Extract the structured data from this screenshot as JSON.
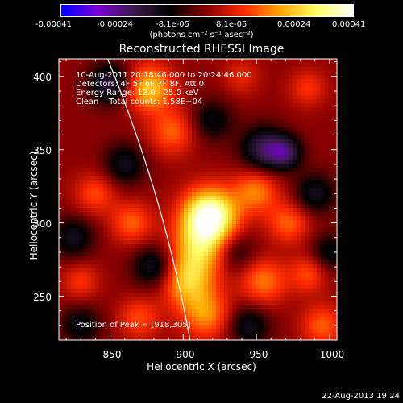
{
  "colorbar": {
    "ticks": [
      "-0.00041",
      "-0.00024",
      "-8.1e-05",
      "8.1e-05",
      "0.00024",
      "0.00041"
    ],
    "unit": "(photons cm⁻² s⁻¹ asec⁻²)",
    "colors": [
      "#0000ff",
      "#7a00d8",
      "#3a1a4a",
      "#000000",
      "#8a0000",
      "#ff2a00",
      "#ffa500",
      "#ffff66",
      "#ffffff"
    ]
  },
  "chart_data": {
    "type": "heatmap",
    "title": "Reconstructed RHESSI Image",
    "xlabel": "Heliocentric X (arcsec)",
    "ylabel": "Heliocentric Y (arcsec)",
    "xlim": [
      815,
      1005
    ],
    "ylim": [
      220,
      412
    ],
    "xticks": [
      "850",
      "900",
      "950",
      "1000"
    ],
    "yticks": [
      "250",
      "300",
      "350",
      "400"
    ],
    "xtick_values": [
      850,
      900,
      950,
      1000
    ],
    "ytick_values": [
      250,
      300,
      350,
      400
    ],
    "peak": [
      918,
      305
    ],
    "sources": [
      {
        "x": 918,
        "y": 305,
        "amp": 1.0,
        "w": 13
      },
      {
        "x": 912,
        "y": 282,
        "amp": 0.55,
        "w": 14
      },
      {
        "x": 902,
        "y": 260,
        "amp": 0.5,
        "w": 12
      },
      {
        "x": 915,
        "y": 238,
        "amp": 0.45,
        "w": 12
      },
      {
        "x": 877,
        "y": 392,
        "amp": 0.6,
        "w": 11
      },
      {
        "x": 892,
        "y": 362,
        "amp": 0.35,
        "w": 11
      },
      {
        "x": 950,
        "y": 322,
        "amp": 0.42,
        "w": 11
      },
      {
        "x": 972,
        "y": 300,
        "amp": 0.35,
        "w": 10
      },
      {
        "x": 955,
        "y": 260,
        "amp": 0.4,
        "w": 11
      },
      {
        "x": 985,
        "y": 265,
        "amp": 0.3,
        "w": 9
      },
      {
        "x": 865,
        "y": 300,
        "amp": 0.35,
        "w": 10
      },
      {
        "x": 840,
        "y": 320,
        "amp": 0.3,
        "w": 10
      },
      {
        "x": 995,
        "y": 230,
        "amp": 0.35,
        "w": 10
      },
      {
        "x": 830,
        "y": 260,
        "amp": 0.25,
        "w": 9
      },
      {
        "x": 985,
        "y": 392,
        "amp": 0.25,
        "w": 9
      },
      {
        "x": 870,
        "y": 235,
        "amp": 0.3,
        "w": 10
      },
      {
        "x": 940,
        "y": 400,
        "amp": 0.2,
        "w": 9
      },
      {
        "x": 850,
        "y": 395,
        "amp": -0.45,
        "w": 10
      },
      {
        "x": 955,
        "y": 350,
        "amp": -0.5,
        "w": 11
      },
      {
        "x": 970,
        "y": 348,
        "amp": -0.45,
        "w": 8
      },
      {
        "x": 860,
        "y": 340,
        "amp": -0.35,
        "w": 10
      },
      {
        "x": 935,
        "y": 280,
        "amp": -0.3,
        "w": 10
      },
      {
        "x": 880,
        "y": 270,
        "amp": -0.4,
        "w": 10
      },
      {
        "x": 825,
        "y": 290,
        "amp": -0.35,
        "w": 10
      },
      {
        "x": 990,
        "y": 320,
        "amp": -0.35,
        "w": 10
      },
      {
        "x": 830,
        "y": 230,
        "amp": -0.3,
        "w": 10
      },
      {
        "x": 945,
        "y": 230,
        "amp": -0.35,
        "w": 10
      },
      {
        "x": 920,
        "y": 370,
        "amp": -0.3,
        "w": 10
      },
      {
        "x": 1000,
        "y": 280,
        "amp": -0.3,
        "w": 9
      }
    ]
  },
  "annotations": {
    "time_range": "10-Aug-2011 20:18:46.000 to 20:24:46.000",
    "detectors": "Detectors: 4F 5F 6F 7F 8F, Att 0",
    "energy": "Energy Range: 12.0 - 25.0 keV",
    "clean_counts": "Clean    Total counts: 1.58E+04",
    "peak_text": "Position of Peak = [918,305]"
  },
  "footer": {
    "date": "22-Aug-2013 19:24"
  }
}
